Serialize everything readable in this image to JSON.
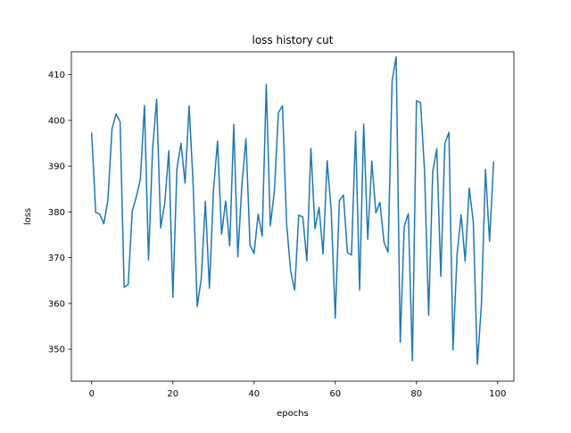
{
  "chart_data": {
    "type": "line",
    "title": "loss history cut",
    "xlabel": "epochs",
    "ylabel": "loss",
    "xlim": [
      -5,
      104
    ],
    "ylim": [
      343,
      415
    ],
    "x_ticks": [
      0,
      20,
      40,
      60,
      80,
      100
    ],
    "y_ticks": [
      350,
      360,
      370,
      380,
      390,
      400,
      410
    ],
    "grid": false,
    "series": [
      {
        "color": "#1f77b4",
        "x": [
          0,
          1,
          2,
          3,
          4,
          5,
          6,
          7,
          8,
          9,
          10,
          11,
          12,
          13,
          14,
          15,
          16,
          17,
          18,
          19,
          20,
          21,
          22,
          23,
          24,
          25,
          26,
          27,
          28,
          29,
          30,
          31,
          32,
          33,
          34,
          35,
          36,
          37,
          38,
          39,
          40,
          41,
          42,
          43,
          44,
          45,
          46,
          47,
          48,
          49,
          50,
          51,
          52,
          53,
          54,
          55,
          56,
          57,
          58,
          59,
          60,
          61,
          62,
          63,
          64,
          65,
          66,
          67,
          68,
          69,
          70,
          71,
          72,
          73,
          74,
          75,
          76,
          77,
          78,
          79,
          80,
          81,
          82,
          83,
          84,
          85,
          86,
          87,
          88,
          89,
          90,
          91,
          92,
          93,
          94,
          95,
          96,
          97,
          98,
          99
        ],
        "y": [
          397.2,
          379.9,
          379.5,
          377.4,
          382.6,
          398.1,
          401.4,
          399.7,
          363.5,
          364.2,
          380.2,
          383.3,
          387.2,
          403.3,
          369.5,
          393.7,
          404.6,
          376.5,
          381.9,
          393.4,
          361.3,
          389.4,
          395.0,
          386.3,
          403.2,
          385.9,
          359.3,
          365.5,
          382.3,
          363.3,
          384.7,
          395.5,
          375.1,
          382.4,
          372.6,
          399.1,
          370.2,
          385.9,
          396.0,
          372.7,
          370.9,
          379.5,
          374.7,
          407.9,
          377.0,
          384.5,
          401.7,
          403.2,
          377.6,
          367.1,
          362.9,
          379.3,
          378.9,
          369.3,
          393.9,
          376.3,
          381.0,
          370.8,
          391.2,
          380.3,
          356.8,
          382.4,
          383.7,
          371.1,
          370.6,
          397.6,
          362.9,
          399.2,
          374.0,
          391.1,
          379.8,
          382.1,
          373.4,
          371.2,
          408.6,
          413.9,
          351.5,
          376.9,
          379.6,
          347.5,
          404.3,
          403.9,
          388.8,
          357.4,
          388.7,
          393.8,
          365.9,
          395.0,
          397.4,
          349.8,
          370.7,
          379.4,
          369.2,
          385.2,
          377.8,
          346.7,
          359.8,
          389.3,
          373.6,
          390.9
        ]
      }
    ]
  }
}
